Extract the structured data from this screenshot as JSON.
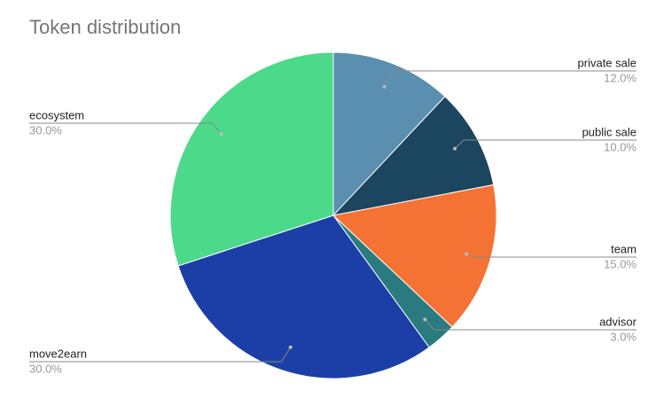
{
  "chart_data": {
    "type": "pie",
    "title": "Token distribution",
    "categories": [
      "private sale",
      "public sale",
      "team",
      "advisor",
      "move2earn",
      "ecosystem"
    ],
    "values": [
      12,
      10,
      15,
      3,
      30,
      30
    ],
    "value_labels": [
      "12.0%",
      "10.0%",
      "15.0%",
      "3.0%",
      "30.0%",
      "30.0%"
    ],
    "colors": [
      "#5b8fb0",
      "#1c4560",
      "#f47234",
      "#2a7b80",
      "#1b3fa6",
      "#4cd98a"
    ]
  }
}
